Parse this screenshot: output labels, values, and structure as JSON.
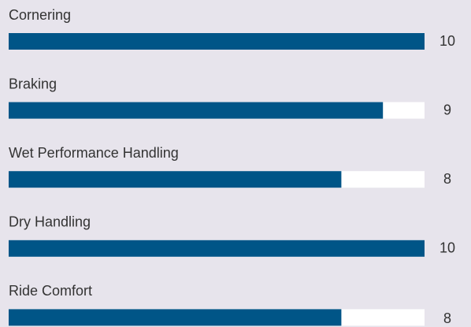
{
  "chart_data": {
    "type": "bar",
    "categories": [
      "Cornering",
      "Braking",
      "Wet Performance Handling",
      "Dry Handling",
      "Ride Comfort"
    ],
    "values": [
      10,
      9,
      8,
      10,
      8
    ],
    "color": "#005587",
    "xlim": [
      0,
      10
    ]
  }
}
